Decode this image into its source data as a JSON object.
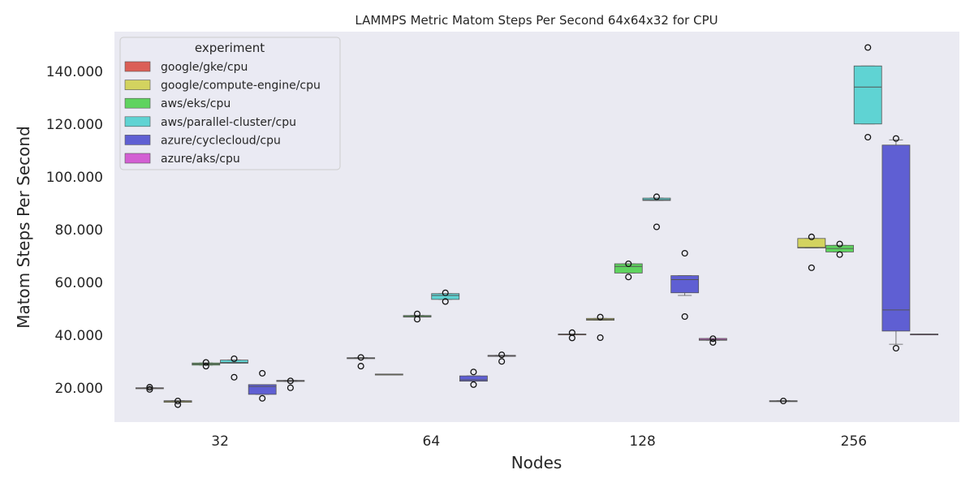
{
  "chart_data": {
    "type": "box",
    "title": "LAMMPS Metric Matom Steps Per Second 64x64x32 for CPU",
    "xlabel": "Nodes",
    "ylabel": "Matom Steps Per Second",
    "categories": [
      "32",
      "64",
      "128",
      "256"
    ],
    "ylim": [
      7000,
      155000
    ],
    "yticks": [
      20000,
      40000,
      60000,
      80000,
      100000,
      120000,
      140000
    ],
    "ytick_labels": [
      "20.000",
      "40.000",
      "60.000",
      "80.000",
      "100.000",
      "120.000",
      "140.000"
    ],
    "grid": false,
    "background": "#eaeaf2",
    "legend": {
      "title": "experiment",
      "placement": "top-left",
      "entries": [
        "google/gke/cpu",
        "google/compute-engine/cpu",
        "aws/eks/cpu",
        "aws/parallel-cluster/cpu",
        "azure/cyclecloud/cpu",
        "azure/aks/cpu"
      ]
    },
    "series": [
      {
        "name": "google/gke/cpu",
        "color": "#db5f57",
        "boxes": [
          {
            "category": "32",
            "q1": 19800,
            "median": 19900,
            "q3": 20000,
            "whisker_low": 19800,
            "whisker_high": 20000,
            "outliers": [
              19400,
              20200
            ]
          },
          {
            "category": "64",
            "q1": 31200,
            "median": 31300,
            "q3": 31400,
            "whisker_low": 31200,
            "whisker_high": 31400,
            "outliers": [
              28200,
              31500
            ]
          },
          {
            "category": "128",
            "q1": 40200,
            "median": 40300,
            "q3": 40400,
            "whisker_low": 40200,
            "whisker_high": 40400,
            "outliers": [
              38900,
              40900
            ]
          },
          {
            "category": "256",
            "q1": 14900,
            "median": 15000,
            "q3": 15100,
            "whisker_low": 14900,
            "whisker_high": 15100,
            "outliers": [
              15000
            ]
          }
        ]
      },
      {
        "name": "google/compute-engine/cpu",
        "color": "#d3d35f",
        "boxes": [
          {
            "category": "32",
            "q1": 14500,
            "median": 14800,
            "q3": 15100,
            "whisker_low": 14500,
            "whisker_high": 15100,
            "outliers": [
              13600,
              15000
            ]
          },
          {
            "category": "64",
            "q1": 25000,
            "median": 25100,
            "q3": 25200,
            "whisker_low": 25000,
            "whisker_high": 25200,
            "outliers": []
          },
          {
            "category": "128",
            "q1": 45600,
            "median": 45900,
            "q3": 46300,
            "whisker_low": 45600,
            "whisker_high": 46300,
            "outliers": [
              39000,
              46800
            ]
          },
          {
            "category": "256",
            "q1": 73000,
            "median": 73200,
            "q3": 76600,
            "whisker_low": 73000,
            "whisker_high": 76600,
            "outliers": [
              65500,
              77200
            ]
          }
        ]
      },
      {
        "name": "aws/eks/cpu",
        "color": "#5fd35f",
        "boxes": [
          {
            "category": "32",
            "q1": 28600,
            "median": 29000,
            "q3": 29400,
            "whisker_low": 28600,
            "whisker_high": 29400,
            "outliers": [
              28200,
              29600
            ]
          },
          {
            "category": "64",
            "q1": 46800,
            "median": 47000,
            "q3": 47400,
            "whisker_low": 46800,
            "whisker_high": 47400,
            "outliers": [
              46000,
              48000
            ]
          },
          {
            "category": "128",
            "q1": 63500,
            "median": 66000,
            "q3": 67000,
            "whisker_low": 63500,
            "whisker_high": 67000,
            "outliers": [
              62000,
              67000
            ]
          },
          {
            "category": "256",
            "q1": 71500,
            "median": 72800,
            "q3": 74000,
            "whisker_low": 71500,
            "whisker_high": 74000,
            "outliers": [
              70500,
              74500
            ]
          }
        ]
      },
      {
        "name": "aws/parallel-cluster/cpu",
        "color": "#5fd3d3",
        "boxes": [
          {
            "category": "32",
            "q1": 29300,
            "median": 29600,
            "q3": 30500,
            "whisker_low": 29300,
            "whisker_high": 30500,
            "outliers": [
              24000,
              31000
            ]
          },
          {
            "category": "64",
            "q1": 53500,
            "median": 55000,
            "q3": 55700,
            "whisker_low": 53500,
            "whisker_high": 55700,
            "outliers": [
              52700,
              56000
            ]
          },
          {
            "category": "128",
            "q1": 91000,
            "median": 91300,
            "q3": 91900,
            "whisker_low": 91000,
            "whisker_high": 91900,
            "outliers": [
              81000,
              92400
            ]
          },
          {
            "category": "256",
            "q1": 120000,
            "median": 134000,
            "q3": 142000,
            "whisker_low": 120000,
            "whisker_high": 142000,
            "outliers": [
              115000,
              149000
            ]
          }
        ]
      },
      {
        "name": "azure/cyclecloud/cpu",
        "color": "#5f5fd3",
        "boxes": [
          {
            "category": "32",
            "q1": 17500,
            "median": 20500,
            "q3": 21200,
            "whisker_low": 17500,
            "whisker_high": 21200,
            "outliers": [
              16000,
              25500
            ]
          },
          {
            "category": "64",
            "q1": 22500,
            "median": 23000,
            "q3": 24500,
            "whisker_low": 22500,
            "whisker_high": 24500,
            "outliers": [
              21200,
              26000
            ]
          },
          {
            "category": "128",
            "q1": 56000,
            "median": 61000,
            "q3": 62500,
            "whisker_low": 55000,
            "whisker_high": 62500,
            "outliers": [
              47000,
              71000
            ]
          },
          {
            "category": "256",
            "q1": 41500,
            "median": 49500,
            "q3": 112000,
            "whisker_low": 36500,
            "whisker_high": 114000,
            "outliers": [
              35000,
              114500
            ]
          }
        ]
      },
      {
        "name": "azure/aks/cpu",
        "color": "#d35fd3",
        "boxes": [
          {
            "category": "32",
            "q1": 22400,
            "median": 22600,
            "q3": 22800,
            "whisker_low": 22400,
            "whisker_high": 22800,
            "outliers": [
              20000,
              22600
            ]
          },
          {
            "category": "64",
            "q1": 31900,
            "median": 32100,
            "q3": 32300,
            "whisker_low": 31900,
            "whisker_high": 32300,
            "outliers": [
              30000,
              32500
            ]
          },
          {
            "category": "128",
            "q1": 38000,
            "median": 38300,
            "q3": 38700,
            "whisker_low": 38000,
            "whisker_high": 38700,
            "outliers": [
              37200,
              38600
            ]
          },
          {
            "category": "256",
            "q1": 40200,
            "median": 40300,
            "q3": 40400,
            "whisker_low": 40200,
            "whisker_high": 40400,
            "outliers": []
          }
        ]
      }
    ]
  }
}
